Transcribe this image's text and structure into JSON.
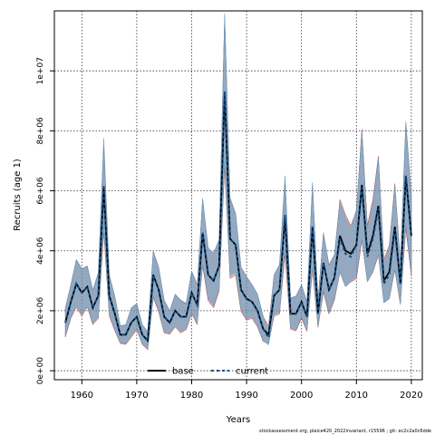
{
  "chart_data": {
    "type": "line",
    "xlabel": "Years",
    "ylabel": "Recruits (age 1)",
    "xlim": [
      1955,
      2022
    ],
    "ylim": [
      -300000,
      12000000
    ],
    "x_ticks": [
      1960,
      1970,
      1980,
      1990,
      2000,
      2010,
      2020
    ],
    "y_ticks": [
      0,
      2000000,
      4000000,
      6000000,
      8000000,
      10000000
    ],
    "y_tick_labels": [
      "0e+00",
      "2e+06",
      "4e+06",
      "6e+06",
      "8e+06",
      "1e+07"
    ],
    "grid": true,
    "legend_position": "bottom-center",
    "x": [
      1957,
      1958,
      1959,
      1960,
      1961,
      1962,
      1963,
      1964,
      1965,
      1966,
      1967,
      1968,
      1969,
      1970,
      1971,
      1972,
      1973,
      1974,
      1975,
      1976,
      1977,
      1978,
      1979,
      1980,
      1981,
      1982,
      1983,
      1984,
      1985,
      1986,
      1987,
      1988,
      1989,
      1990,
      1991,
      1992,
      1993,
      1994,
      1995,
      1996,
      1997,
      1998,
      1999,
      2000,
      2001,
      2002,
      2003,
      2004,
      2005,
      2006,
      2007,
      2008,
      2009,
      2010,
      2011,
      2012,
      2013,
      2014,
      2015,
      2016,
      2017,
      2018,
      2019,
      2020
    ],
    "series": [
      {
        "name": "base",
        "color": "#000000",
        "style": "solid",
        "band_color": "#c0392b",
        "values": [
          1600000,
          2300000,
          2900000,
          2600000,
          2800000,
          2100000,
          2500000,
          6100000,
          2500000,
          1900000,
          1200000,
          1200000,
          1600000,
          1800000,
          1200000,
          1000000,
          3200000,
          2700000,
          1800000,
          1600000,
          2000000,
          1800000,
          1800000,
          2600000,
          2200000,
          4600000,
          3200000,
          3000000,
          3500000,
          9300000,
          4400000,
          4200000,
          2700000,
          2400000,
          2300000,
          2000000,
          1400000,
          1200000,
          2500000,
          2700000,
          5100000,
          1900000,
          1900000,
          2300000,
          1800000,
          4800000,
          1900000,
          3600000,
          2700000,
          3100000,
          4500000,
          4000000,
          3900000,
          4200000,
          6200000,
          3900000,
          4500000,
          5500000,
          3000000,
          3300000,
          4800000,
          2900000,
          6500000,
          4500000
        ]
      },
      {
        "name": "current",
        "color": "#0b4f8a",
        "style": "dashed",
        "band_color": "#5b9fc8",
        "values": [
          1600000,
          2300000,
          2900000,
          2600000,
          2800000,
          2100000,
          2500000,
          6200000,
          2500000,
          1900000,
          1200000,
          1200000,
          1600000,
          1800000,
          1200000,
          1000000,
          3200000,
          2700000,
          1800000,
          1600000,
          2000000,
          1800000,
          1800000,
          2600000,
          2200000,
          4600000,
          3200000,
          3000000,
          3500000,
          9300000,
          4400000,
          4200000,
          2700000,
          2400000,
          2300000,
          2000000,
          1400000,
          1100000,
          2500000,
          2700000,
          5200000,
          1900000,
          1900000,
          2300000,
          1800000,
          4800000,
          1900000,
          3600000,
          2700000,
          3100000,
          4400000,
          3900000,
          3800000,
          4200000,
          6100000,
          3800000,
          4400000,
          5400000,
          2900000,
          3200000,
          4700000,
          2900000,
          6500000,
          4500000
        ]
      }
    ],
    "legend": [
      {
        "name": "base",
        "color": "#000000",
        "style": "solid"
      },
      {
        "name": "current",
        "color": "#0b4f8a",
        "style": "dashed"
      }
    ]
  },
  "footnote": "stockassessment.org, plaice420_2022invariant, r15596 ; git: ec2c2a0c6dde"
}
